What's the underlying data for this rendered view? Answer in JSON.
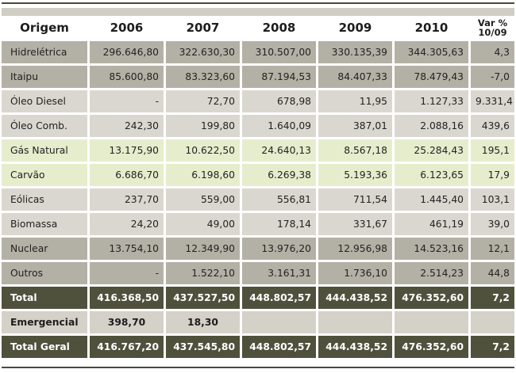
{
  "table": {
    "headers": [
      "Origem",
      "2006",
      "2007",
      "2008",
      "2009",
      "2010"
    ],
    "var_header_line1": "Var %",
    "var_header_line2": "10/09",
    "rows": [
      {
        "label": "Hidrelétrica",
        "values": [
          "296.646,80",
          "322.630,30",
          "310.507,00",
          "330.135,39",
          "344.305,63",
          "4,3"
        ]
      },
      {
        "label": "Itaipu",
        "values": [
          "85.600,80",
          "83.323,60",
          "87.194,53",
          "84.407,33",
          "78.479,43",
          "-7,0"
        ]
      },
      {
        "label": "Óleo Diesel",
        "values": [
          "-",
          "72,70",
          "678,98",
          "11,95",
          "1.127,33",
          "9.331,4"
        ]
      },
      {
        "label": "Óleo Comb.",
        "values": [
          "242,30",
          "199,80",
          "1.640,09",
          "387,01",
          "2.088,16",
          "439,6"
        ]
      },
      {
        "label": "Gás Natural",
        "values": [
          "13.175,90",
          "10.622,50",
          "24.640,13",
          "8.567,18",
          "25.284,43",
          "195,1"
        ]
      },
      {
        "label": "Carvão",
        "values": [
          "6.686,70",
          "6.198,60",
          "6.269,38",
          "5.193,36",
          "6.123,65",
          "17,9"
        ]
      },
      {
        "label": "Eólicas",
        "values": [
          "237,70",
          "559,00",
          "556,81",
          "711,54",
          "1.445,40",
          "103,1"
        ]
      },
      {
        "label": "Biomassa",
        "values": [
          "24,20",
          "49,00",
          "178,14",
          "331,67",
          "461,19",
          "39,0"
        ]
      },
      {
        "label": "Nuclear",
        "values": [
          "13.754,10",
          "12.349,90",
          "13.976,20",
          "12.956,98",
          "14.523,16",
          "12,1"
        ]
      },
      {
        "label": "Outros",
        "values": [
          "-",
          "1.522,10",
          "3.161,31",
          "1.736,10",
          "2.514,23",
          "44,8"
        ]
      }
    ],
    "total": {
      "label": "Total",
      "values": [
        "416.368,50",
        "437.527,50",
        "448.802,57",
        "444.438,52",
        "476.352,60",
        "7,2"
      ]
    },
    "emergencial": {
      "label": "Emergencial",
      "values": [
        "398,70",
        "18,30",
        "",
        "",
        "",
        ""
      ]
    },
    "total_geral": {
      "label": "Total Geral",
      "values": [
        "416.767,20",
        "437.545,80",
        "448.802,57",
        "444.438,52",
        "476.352,60",
        "7,2"
      ]
    }
  }
}
